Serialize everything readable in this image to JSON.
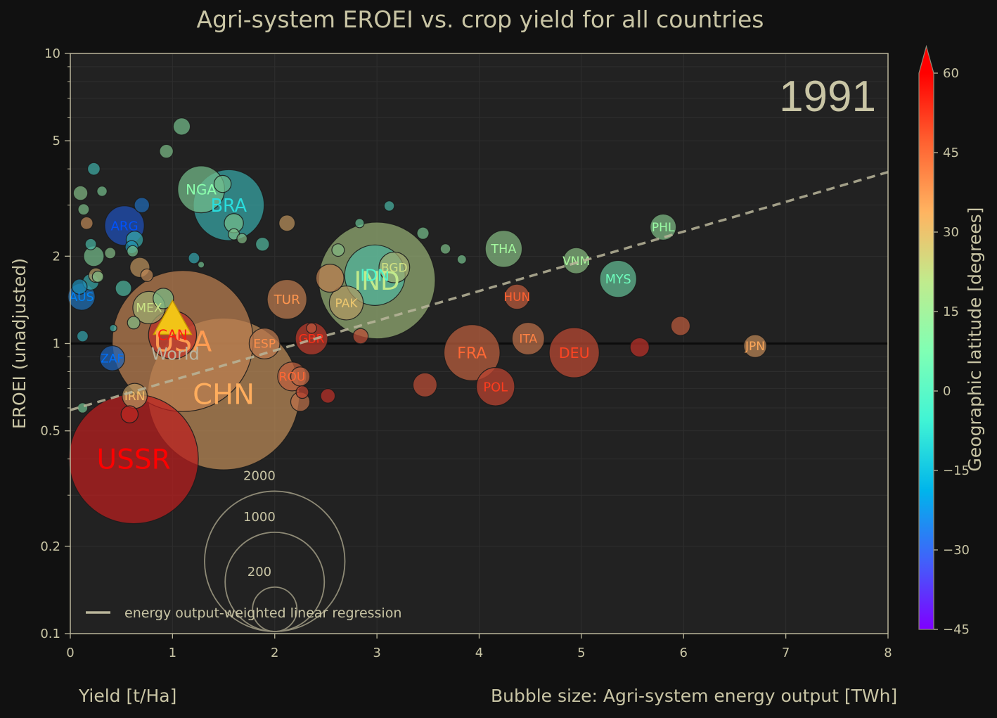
{
  "chart_data": {
    "type": "scatter",
    "title": "Agri-system EROEI vs. crop yield for all countries",
    "xlabel": "Yield [t/Ha]",
    "ylabel": "EROEI (unadjusted)",
    "size_label": "Bubble size: Agri-system energy output [TWh]",
    "year": "1991",
    "xlim": [
      0,
      8
    ],
    "ylim": [
      0.1,
      10
    ],
    "yscale": "log",
    "x_ticks": [
      0,
      1,
      2,
      3,
      4,
      5,
      6,
      7,
      8
    ],
    "y_ticks": [
      {
        "v": 0.1,
        "label": "0.1"
      },
      {
        "v": 0.2,
        "label": "0.2"
      },
      {
        "v": 0.5,
        "label": "0.5"
      },
      {
        "v": 1,
        "label": "1"
      },
      {
        "v": 2,
        "label": "2"
      },
      {
        "v": 5,
        "label": "5"
      },
      {
        "v": 10,
        "label": "10"
      }
    ],
    "grid": true,
    "colorbar": {
      "label": "Geographic latitude [degrees]",
      "min": -45,
      "max": 60,
      "ticks": [
        -45,
        -30,
        -15,
        0,
        15,
        30,
        45,
        60
      ]
    },
    "legend": {
      "placement": "lower-left",
      "entries": [
        "energy output-weighted linear regression"
      ]
    },
    "size_legend": [
      {
        "value": 2000,
        "label": "2000"
      },
      {
        "value": 1000,
        "label": "1000"
      },
      {
        "value": 200,
        "label": "200"
      }
    ],
    "reference_line": {
      "y": 1
    },
    "regression": {
      "x0": 0,
      "y0": 0.59,
      "x1": 8,
      "y1": 3.9
    },
    "world_marker": {
      "label": "World",
      "x": 1.0,
      "y": 1.15
    },
    "countries": [
      {
        "label": "USSR",
        "x": 0.62,
        "y": 0.4,
        "energy": 1600,
        "lat": 60
      },
      {
        "label": "CHN",
        "x": 1.5,
        "y": 0.67,
        "energy": 2200,
        "lat": 35
      },
      {
        "label": "USA",
        "x": 1.1,
        "y": 1.02,
        "energy": 1900,
        "lat": 38
      },
      {
        "label": "IND",
        "x": 3.0,
        "y": 1.65,
        "energy": 1300,
        "lat": 21
      },
      {
        "label": "BRA",
        "x": 1.55,
        "y": 3.0,
        "energy": 480,
        "lat": -10
      },
      {
        "label": "IDN",
        "x": 2.98,
        "y": 1.72,
        "energy": 350,
        "lat": -2
      },
      {
        "label": "NGA",
        "x": 1.28,
        "y": 3.4,
        "energy": 210,
        "lat": 10
      },
      {
        "label": "ARG",
        "x": 0.53,
        "y": 2.55,
        "energy": 150,
        "lat": -34
      },
      {
        "label": "FRA",
        "x": 3.93,
        "y": 0.93,
        "energy": 300,
        "lat": 46
      },
      {
        "label": "DEU",
        "x": 4.93,
        "y": 0.93,
        "energy": 240,
        "lat": 51
      },
      {
        "label": "POL",
        "x": 4.16,
        "y": 0.71,
        "energy": 140,
        "lat": 52
      },
      {
        "label": "TUR",
        "x": 2.12,
        "y": 1.42,
        "energy": 150,
        "lat": 39
      },
      {
        "label": "THA",
        "x": 4.24,
        "y": 2.12,
        "energy": 130,
        "lat": 15
      },
      {
        "label": "MYS",
        "x": 5.36,
        "y": 1.67,
        "energy": 130,
        "lat": 4
      },
      {
        "label": "PAK",
        "x": 2.7,
        "y": 1.38,
        "energy": 110,
        "lat": 30
      },
      {
        "label": "BGD",
        "x": 3.17,
        "y": 1.83,
        "energy": 90,
        "lat": 24
      },
      {
        "label": "VNM",
        "x": 4.95,
        "y": 1.93,
        "energy": 65,
        "lat": 16
      },
      {
        "label": "PHL",
        "x": 5.8,
        "y": 2.52,
        "energy": 65,
        "lat": 13
      },
      {
        "label": "MEX",
        "x": 0.77,
        "y": 1.33,
        "energy": 100,
        "lat": 23
      },
      {
        "label": "CAN",
        "x": 1.0,
        "y": 1.07,
        "energy": 220,
        "lat": 56
      },
      {
        "label": "ESP",
        "x": 1.9,
        "y": 1.0,
        "energy": 90,
        "lat": 40
      },
      {
        "label": "GBR",
        "x": 2.36,
        "y": 1.04,
        "energy": 100,
        "lat": 54
      },
      {
        "label": "ROU",
        "x": 2.17,
        "y": 0.77,
        "energy": 80,
        "lat": 46
      },
      {
        "label": "HUN",
        "x": 4.37,
        "y": 1.45,
        "energy": 60,
        "lat": 47
      },
      {
        "label": "ITA",
        "x": 4.48,
        "y": 1.04,
        "energy": 100,
        "lat": 42
      },
      {
        "label": "JPN",
        "x": 6.7,
        "y": 0.98,
        "energy": 50,
        "lat": 36
      },
      {
        "label": "IRN",
        "x": 0.63,
        "y": 0.66,
        "energy": 60,
        "lat": 32
      },
      {
        "label": "AUS",
        "x": 0.11,
        "y": 1.45,
        "energy": 70,
        "lat": -27
      },
      {
        "label": "ZAF",
        "x": 0.41,
        "y": 0.89,
        "energy": 60,
        "lat": -30
      }
    ],
    "others": [
      {
        "x": 0.58,
        "y": 0.57,
        "energy": 28,
        "lat": 58
      },
      {
        "x": 1.09,
        "y": 5.6,
        "energy": 28,
        "lat": 10
      },
      {
        "x": 0.94,
        "y": 4.6,
        "energy": 18,
        "lat": 12
      },
      {
        "x": 0.23,
        "y": 4.0,
        "energy": 15,
        "lat": -8
      },
      {
        "x": 0.7,
        "y": 3.0,
        "energy": 22,
        "lat": -28
      },
      {
        "x": 0.1,
        "y": 3.3,
        "energy": 20,
        "lat": 14
      },
      {
        "x": 0.13,
        "y": 2.9,
        "energy": 12,
        "lat": 12
      },
      {
        "x": 0.31,
        "y": 3.35,
        "energy": 10,
        "lat": 10
      },
      {
        "x": 0.16,
        "y": 2.6,
        "energy": 15,
        "lat": 36
      },
      {
        "x": 0.23,
        "y": 2.0,
        "energy": 40,
        "lat": 10
      },
      {
        "x": 0.39,
        "y": 2.05,
        "energy": 12,
        "lat": 14
      },
      {
        "x": 0.2,
        "y": 2.2,
        "energy": 12,
        "lat": -5
      },
      {
        "x": 0.63,
        "y": 2.28,
        "energy": 28,
        "lat": -10
      },
      {
        "x": 0.6,
        "y": 2.15,
        "energy": 16,
        "lat": -18
      },
      {
        "x": 0.61,
        "y": 2.08,
        "energy": 12,
        "lat": 10
      },
      {
        "x": 0.52,
        "y": 1.55,
        "energy": 25,
        "lat": -3
      },
      {
        "x": 0.68,
        "y": 1.83,
        "energy": 38,
        "lat": 33
      },
      {
        "x": 0.75,
        "y": 1.72,
        "energy": 15,
        "lat": 36
      },
      {
        "x": 0.25,
        "y": 1.72,
        "energy": 20,
        "lat": 30
      },
      {
        "x": 0.27,
        "y": 1.7,
        "energy": 12,
        "lat": 13
      },
      {
        "x": 0.2,
        "y": 1.63,
        "energy": 25,
        "lat": -10
      },
      {
        "x": 0.09,
        "y": 1.57,
        "energy": 22,
        "lat": -20
      },
      {
        "x": 0.91,
        "y": 1.43,
        "energy": 40,
        "lat": 12
      },
      {
        "x": 0.62,
        "y": 1.18,
        "energy": 15,
        "lat": 14
      },
      {
        "x": 0.12,
        "y": 1.06,
        "energy": 12,
        "lat": -12
      },
      {
        "x": 0.42,
        "y": 1.13,
        "energy": 5,
        "lat": -8
      },
      {
        "x": 1.21,
        "y": 1.97,
        "energy": 12,
        "lat": -12
      },
      {
        "x": 1.28,
        "y": 1.87,
        "energy": 4,
        "lat": 8
      },
      {
        "x": 1.49,
        "y": 3.55,
        "energy": 28,
        "lat": 8
      },
      {
        "x": 1.6,
        "y": 2.6,
        "energy": 35,
        "lat": 10
      },
      {
        "x": 1.6,
        "y": 2.38,
        "energy": 12,
        "lat": 12
      },
      {
        "x": 1.68,
        "y": 2.3,
        "energy": 10,
        "lat": 14
      },
      {
        "x": 1.88,
        "y": 2.2,
        "energy": 18,
        "lat": -2
      },
      {
        "x": 2.12,
        "y": 2.6,
        "energy": 25,
        "lat": 33
      },
      {
        "x": 2.54,
        "y": 1.68,
        "energy": 75,
        "lat": 38
      },
      {
        "x": 2.62,
        "y": 2.1,
        "energy": 15,
        "lat": 15
      },
      {
        "x": 2.83,
        "y": 2.6,
        "energy": 8,
        "lat": 5
      },
      {
        "x": 3.12,
        "y": 2.98,
        "energy": 10,
        "lat": -5
      },
      {
        "x": 3.45,
        "y": 2.4,
        "energy": 14,
        "lat": 10
      },
      {
        "x": 3.67,
        "y": 2.12,
        "energy": 10,
        "lat": 12
      },
      {
        "x": 3.83,
        "y": 1.95,
        "energy": 8,
        "lat": 10
      },
      {
        "x": 2.84,
        "y": 1.06,
        "energy": 22,
        "lat": 50
      },
      {
        "x": 2.25,
        "y": 0.77,
        "energy": 35,
        "lat": 44
      },
      {
        "x": 2.25,
        "y": 0.63,
        "energy": 35,
        "lat": 42
      },
      {
        "x": 2.27,
        "y": 0.68,
        "energy": 15,
        "lat": 52
      },
      {
        "x": 2.36,
        "y": 1.13,
        "energy": 10,
        "lat": 48
      },
      {
        "x": 2.52,
        "y": 0.66,
        "energy": 20,
        "lat": 56
      },
      {
        "x": 3.47,
        "y": 0.72,
        "energy": 55,
        "lat": 50
      },
      {
        "x": 5.57,
        "y": 0.97,
        "energy": 35,
        "lat": 56
      },
      {
        "x": 5.97,
        "y": 1.15,
        "energy": 35,
        "lat": 47
      },
      {
        "x": 0.12,
        "y": 0.6,
        "energy": 10,
        "lat": 8
      }
    ]
  }
}
